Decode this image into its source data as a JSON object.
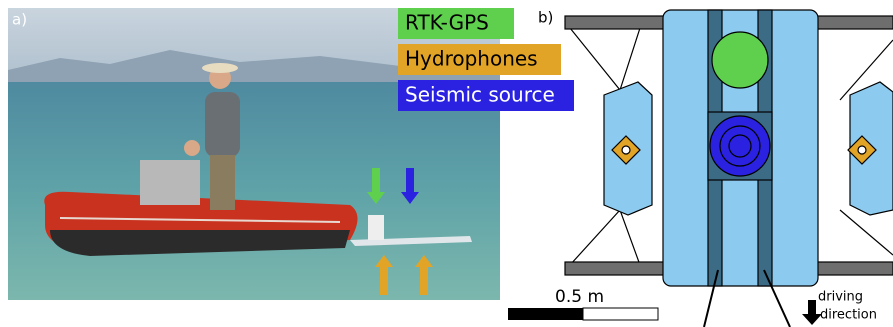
{
  "panel_a": {
    "label": "a)",
    "legend": [
      "RTK-GPS",
      "Hydrophones",
      "Seismic source"
    ]
  },
  "panel_b": {
    "label": "b)",
    "scale": "0.5 m",
    "direction": [
      "driving",
      "direction"
    ]
  }
}
